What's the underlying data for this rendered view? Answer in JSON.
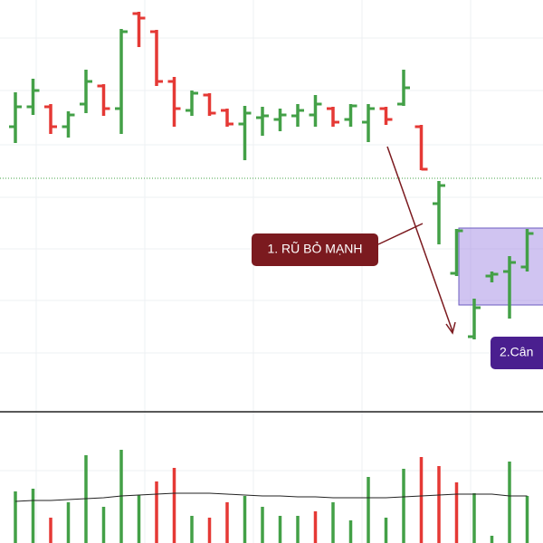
{
  "chart_data": {
    "type": "ohlc",
    "up_color": "#43a047",
    "down_color": "#e53935",
    "ylim": [
      155,
      600
    ],
    "open": [
      460,
      482,
      482,
      460,
      485,
      505,
      480,
      585,
      565,
      510,
      478,
      495,
      478,
      463,
      470,
      468,
      472,
      473,
      480,
      468,
      465,
      480,
      485,
      460,
      375,
      298,
      228,
      295,
      300,
      305
    ],
    "high": [
      498,
      513,
      485,
      477,
      523,
      507,
      568,
      587,
      567,
      515,
      500,
      497,
      480,
      483,
      482,
      480,
      485,
      495,
      482,
      485,
      485,
      482,
      523,
      462,
      400,
      347,
      270,
      300,
      317,
      347
    ],
    "low": [
      442,
      473,
      452,
      448,
      475,
      472,
      452,
      548,
      505,
      460,
      472,
      472,
      460,
      423,
      450,
      455,
      460,
      460,
      460,
      460,
      443,
      462,
      483,
      412,
      330,
      295,
      225,
      288,
      248,
      300
    ],
    "close": [
      482,
      500,
      460,
      473,
      510,
      480,
      565,
      580,
      510,
      480,
      497,
      475,
      463,
      475,
      472,
      473,
      478,
      485,
      465,
      483,
      480,
      468,
      503,
      413,
      395,
      345,
      260,
      297,
      310,
      342
    ],
    "reference_line": 403,
    "volume": {
      "ylim": [
        0,
        145
      ],
      "values": [
        57,
        60,
        28,
        45,
        97,
        40,
        103,
        53,
        68,
        83,
        30,
        28,
        45,
        52,
        40,
        30,
        30,
        35,
        45,
        25,
        73,
        28,
        82,
        95,
        85,
        67,
        55,
        8,
        90,
        52
      ],
      "colors": [
        "#43a047",
        "#43a047",
        "#e53935",
        "#43a047",
        "#43a047",
        "#43a047",
        "#43a047",
        "#43a047",
        "#e53935",
        "#e53935",
        "#43a047",
        "#e53935",
        "#e53935",
        "#43a047",
        "#43a047",
        "#43a047",
        "#43a047",
        "#e53935",
        "#43a047",
        "#43a047",
        "#43a047",
        "#43a047",
        "#43a047",
        "#e53935",
        "#e53935",
        "#e53935",
        "#43a047",
        "#43a047",
        "#43a047",
        "#43a047"
      ],
      "ma": [
        46,
        47,
        47,
        48,
        49,
        50,
        52,
        53,
        54,
        55,
        55,
        55,
        54,
        53,
        52,
        52,
        51,
        51,
        50,
        50,
        50,
        50,
        51,
        52,
        53,
        54,
        54,
        54,
        52,
        52
      ]
    },
    "annotations": [
      "1. RŨ BỎ MẠNH",
      "2.Cân"
    ]
  }
}
